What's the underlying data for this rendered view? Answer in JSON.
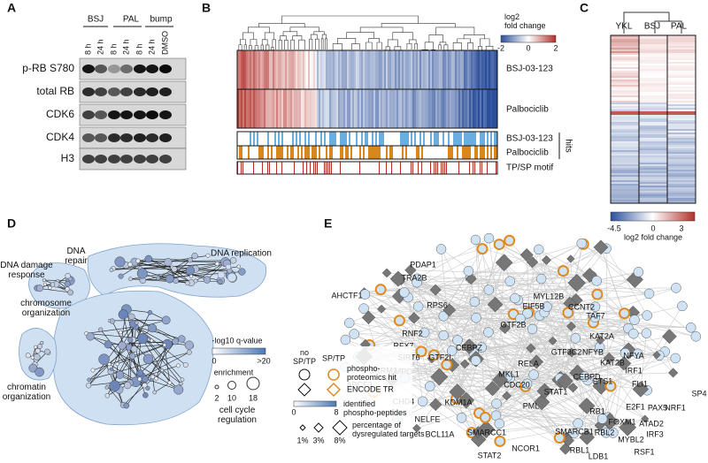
{
  "panels": {
    "a": {
      "label": "A",
      "groups": [
        "BSJ",
        "PAL",
        "bump"
      ],
      "times": [
        "8 h",
        "24 h",
        "8 h",
        "24 h",
        "8 h",
        "24 h",
        "DMSO"
      ],
      "rows": [
        "p-RB S780",
        "total RB",
        "CDK6",
        "CDK4",
        "H3"
      ]
    },
    "b": {
      "label": "B",
      "legend_title": "log2\nfold change",
      "legend_ticks": [
        -2,
        0,
        2
      ],
      "heatmap_rows": [
        "BSJ-03-123",
        "Palbociclib"
      ],
      "hit_rows": [
        "BSJ-03-123",
        "Palbociclib"
      ],
      "hits_label": "hits",
      "motif_label": "TP/SP motif"
    },
    "c": {
      "label": "C",
      "columns": [
        "YKL",
        "BSJ",
        "PAL"
      ],
      "legend_title": "log2 fold change",
      "legend_ticks": [
        -4.5,
        0,
        3
      ]
    },
    "d": {
      "label": "D",
      "clusters": [
        "DNA\nrepair",
        "DNA replication",
        "DNA damage\nresponse",
        "chromosome\norganization",
        "chromatin\norganization",
        "cell cycle\nregulation"
      ],
      "color_legend": {
        "title": "-log10 q-value",
        "ticks": [
          0,
          ">20"
        ]
      },
      "size_legend": {
        "title": "enrichment",
        "ticks": [
          2,
          10,
          18
        ]
      }
    },
    "e": {
      "label": "E",
      "legend": {
        "columns": [
          "no\nSP/TP",
          "SP/TP"
        ],
        "shapes": [
          "phospho-\nproteomics hit",
          "ENCODE TR"
        ],
        "color_title": "identified\nphospho-peptides",
        "color_ticks": [
          0,
          8
        ],
        "size_title": "percentage of\ndysregulated targets",
        "size_ticks": [
          "1%",
          "3%",
          "8%"
        ]
      },
      "nodes": [
        "PDAP1",
        "TRA2B",
        "AHCTF1",
        "RPS6",
        "MYL12B",
        "EIF5B",
        "CCNT2",
        "TAF7",
        "RNF2",
        "GTF2B",
        "CEBPZ",
        "KAT2A",
        "RFX7",
        "SIRT6",
        "GTF2I",
        "GTF3C2",
        "NFYB",
        "NFYA",
        "KAT2B",
        "IRF1",
        "FLI1",
        "ABCF3",
        "SRRM2",
        "MPO",
        "RELA",
        "CEBPD",
        "ETS1",
        "MKL1",
        "CDC20",
        "STAT1",
        "CHD4",
        "KDM1A",
        "PML",
        "RB1",
        "E2F1",
        "FOXM1",
        "ATAD2",
        "PAX5",
        "NELFE",
        "SP4",
        "NRF1",
        "BCL11A",
        "SMARCC1",
        "SMARCB1",
        "RBL2",
        "MYBL2",
        "IRF3",
        "NCOR1",
        "RBL1",
        "LDB1",
        "RSF1",
        "STAT2"
      ]
    }
  }
}
